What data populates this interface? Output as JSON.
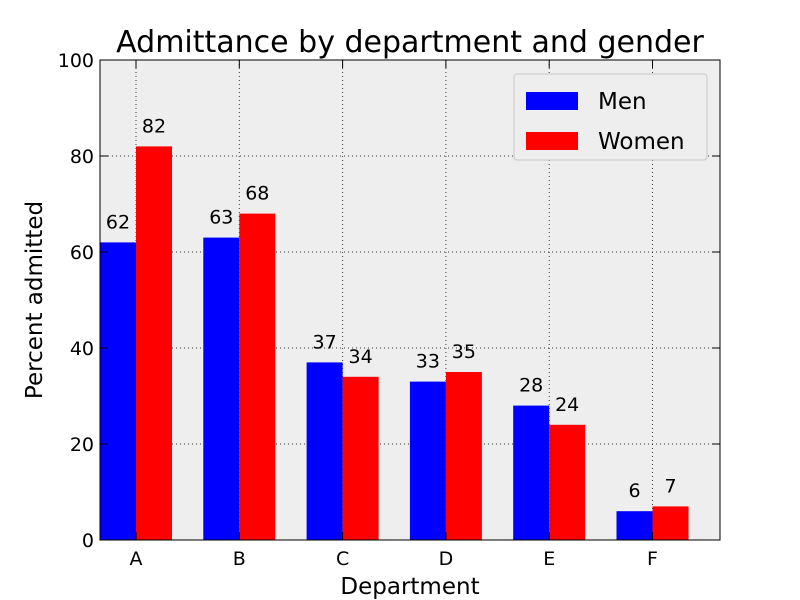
{
  "chart_data": {
    "type": "bar",
    "title": "Admittance by department and gender",
    "xlabel": "Department",
    "ylabel": "Percent admitted",
    "categories": [
      "A",
      "B",
      "C",
      "D",
      "E",
      "F"
    ],
    "series": [
      {
        "name": "Men",
        "color": "#0000ff",
        "values": [
          62,
          63,
          37,
          33,
          28,
          6
        ]
      },
      {
        "name": "Women",
        "color": "#ff0000",
        "values": [
          82,
          68,
          34,
          35,
          24,
          7
        ]
      }
    ],
    "ylim": [
      0,
      100
    ],
    "yticks": [
      0,
      20,
      40,
      60,
      80,
      100
    ],
    "grid": true,
    "legend_position": "top-right",
    "background": "#eeeeee"
  }
}
